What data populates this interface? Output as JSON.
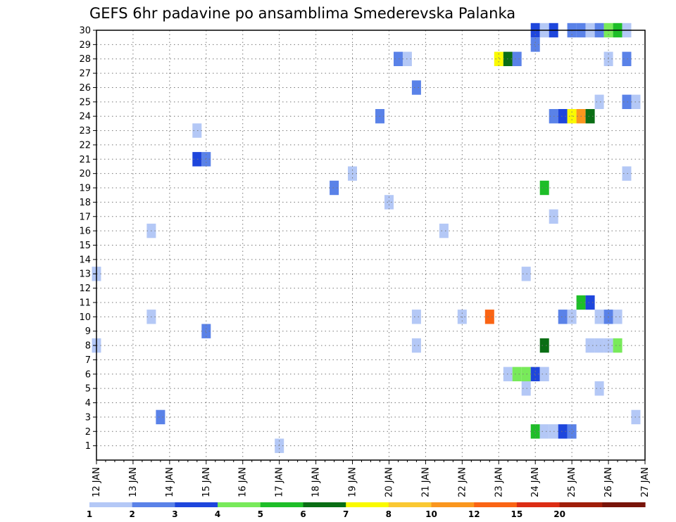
{
  "chart_data": {
    "type": "heatmap",
    "title": "GEFS 6hr padavine po ansamblima Smederevska Palanka",
    "x_tick_labels": [
      "12 JAN",
      "13 JAN",
      "14 JAN",
      "15 JAN",
      "16 JAN",
      "17 JAN",
      "18 JAN",
      "19 JAN",
      "20 JAN",
      "21 JAN",
      "22 JAN",
      "23 JAN",
      "24 JAN",
      "25 JAN",
      "26 JAN",
      "27 JAN"
    ],
    "x_range_days": [
      12,
      27
    ],
    "y_tick_labels": [
      "1",
      "2",
      "3",
      "4",
      "5",
      "6",
      "7",
      "8",
      "9",
      "10",
      "11",
      "12",
      "13",
      "14",
      "15",
      "16",
      "17",
      "18",
      "19",
      "20",
      "21",
      "22",
      "23",
      "24",
      "25",
      "26",
      "27",
      "28",
      "29",
      "30"
    ],
    "y_range": [
      0,
      30
    ],
    "grid": true,
    "colorbar": {
      "placement": "bottom",
      "tick_labels": [
        "1",
        "2",
        "3",
        "4",
        "5",
        "6",
        "7",
        "8",
        "10",
        "12",
        "15",
        "20"
      ],
      "colors": [
        "#b4c8f6",
        "#5a82e8",
        "#1e46dc",
        "#78ea5a",
        "#1ebe28",
        "#0a6e14",
        "#fafa00",
        "#fac832",
        "#fa961e",
        "#fa6414",
        "#dc2d14",
        "#a01e0a",
        "#78140a"
      ]
    },
    "cells": [
      {
        "day": 12.0,
        "member": 13,
        "color": "#b4c8f6"
      },
      {
        "day": 12.0,
        "member": 8,
        "color": "#b4c8f6"
      },
      {
        "day": 13.5,
        "member": 16,
        "color": "#b4c8f6"
      },
      {
        "day": 13.5,
        "member": 10,
        "color": "#b4c8f6"
      },
      {
        "day": 13.75,
        "member": 3,
        "color": "#5a82e8"
      },
      {
        "day": 14.75,
        "member": 23,
        "color": "#b4c8f6"
      },
      {
        "day": 14.75,
        "member": 21,
        "color": "#1e46dc"
      },
      {
        "day": 15.0,
        "member": 21,
        "color": "#5a82e8"
      },
      {
        "day": 15.0,
        "member": 9,
        "color": "#5a82e8"
      },
      {
        "day": 17.0,
        "member": 1,
        "color": "#b4c8f6"
      },
      {
        "day": 18.5,
        "member": 19,
        "color": "#5a82e8"
      },
      {
        "day": 19.0,
        "member": 20,
        "color": "#b4c8f6"
      },
      {
        "day": 19.75,
        "member": 24,
        "color": "#5a82e8"
      },
      {
        "day": 20.0,
        "member": 18,
        "color": "#b4c8f6"
      },
      {
        "day": 20.25,
        "member": 28,
        "color": "#5a82e8"
      },
      {
        "day": 20.5,
        "member": 28,
        "color": "#b4c8f6"
      },
      {
        "day": 20.75,
        "member": 26,
        "color": "#5a82e8"
      },
      {
        "day": 20.75,
        "member": 10,
        "color": "#b4c8f6"
      },
      {
        "day": 20.75,
        "member": 8,
        "color": "#b4c8f6"
      },
      {
        "day": 21.5,
        "member": 16,
        "color": "#b4c8f6"
      },
      {
        "day": 22.0,
        "member": 10,
        "color": "#b4c8f6"
      },
      {
        "day": 22.75,
        "member": 10,
        "color": "#fa6414"
      },
      {
        "day": 23.0,
        "member": 28,
        "color": "#fafa00"
      },
      {
        "day": 23.25,
        "member": 28,
        "color": "#0a6e14"
      },
      {
        "day": 23.25,
        "member": 6,
        "color": "#b4c8f6"
      },
      {
        "day": 23.5,
        "member": 28,
        "color": "#5a82e8"
      },
      {
        "day": 23.5,
        "member": 6,
        "color": "#78ea5a"
      },
      {
        "day": 23.75,
        "member": 6,
        "color": "#78ea5a"
      },
      {
        "day": 23.75,
        "member": 13,
        "color": "#b4c8f6"
      },
      {
        "day": 23.75,
        "member": 5,
        "color": "#b4c8f6"
      },
      {
        "day": 24.0,
        "member": 30,
        "color": "#1e46dc"
      },
      {
        "day": 24.0,
        "member": 29,
        "color": "#5a82e8"
      },
      {
        "day": 24.0,
        "member": 6,
        "color": "#1e46dc"
      },
      {
        "day": 24.0,
        "member": 2,
        "color": "#1ebe28"
      },
      {
        "day": 24.25,
        "member": 30,
        "color": "#b4c8f6"
      },
      {
        "day": 24.25,
        "member": 19,
        "color": "#1ebe28"
      },
      {
        "day": 24.25,
        "member": 8,
        "color": "#0a6e14"
      },
      {
        "day": 24.25,
        "member": 6,
        "color": "#b4c8f6"
      },
      {
        "day": 24.25,
        "member": 2,
        "color": "#b4c8f6"
      },
      {
        "day": 24.5,
        "member": 30,
        "color": "#1e46dc"
      },
      {
        "day": 24.5,
        "member": 24,
        "color": "#5a82e8"
      },
      {
        "day": 24.5,
        "member": 17,
        "color": "#b4c8f6"
      },
      {
        "day": 24.5,
        "member": 2,
        "color": "#b4c8f6"
      },
      {
        "day": 24.75,
        "member": 24,
        "color": "#1e46dc"
      },
      {
        "day": 24.75,
        "member": 10,
        "color": "#5a82e8"
      },
      {
        "day": 24.75,
        "member": 2,
        "color": "#1e46dc"
      },
      {
        "day": 25.0,
        "member": 30,
        "color": "#5a82e8"
      },
      {
        "day": 25.0,
        "member": 24,
        "color": "#fafa00"
      },
      {
        "day": 25.0,
        "member": 10,
        "color": "#b4c8f6"
      },
      {
        "day": 25.0,
        "member": 2,
        "color": "#5a82e8"
      },
      {
        "day": 25.25,
        "member": 30,
        "color": "#5a82e8"
      },
      {
        "day": 25.25,
        "member": 24,
        "color": "#fa961e"
      },
      {
        "day": 25.25,
        "member": 11,
        "color": "#1ebe28"
      },
      {
        "day": 25.5,
        "member": 30,
        "color": "#b4c8f6"
      },
      {
        "day": 25.5,
        "member": 24,
        "color": "#0a6e14"
      },
      {
        "day": 25.5,
        "member": 11,
        "color": "#1e46dc"
      },
      {
        "day": 25.5,
        "member": 8,
        "color": "#b4c8f6"
      },
      {
        "day": 25.75,
        "member": 30,
        "color": "#5a82e8"
      },
      {
        "day": 25.75,
        "member": 25,
        "color": "#b4c8f6"
      },
      {
        "day": 25.75,
        "member": 10,
        "color": "#b4c8f6"
      },
      {
        "day": 25.75,
        "member": 8,
        "color": "#b4c8f6"
      },
      {
        "day": 25.75,
        "member": 5,
        "color": "#b4c8f6"
      },
      {
        "day": 26.0,
        "member": 30,
        "color": "#78ea5a"
      },
      {
        "day": 26.0,
        "member": 28,
        "color": "#b4c8f6"
      },
      {
        "day": 26.0,
        "member": 10,
        "color": "#5a82e8"
      },
      {
        "day": 26.0,
        "member": 8,
        "color": "#b4c8f6"
      },
      {
        "day": 26.25,
        "member": 30,
        "color": "#1ebe28"
      },
      {
        "day": 26.25,
        "member": 10,
        "color": "#b4c8f6"
      },
      {
        "day": 26.25,
        "member": 8,
        "color": "#78ea5a"
      },
      {
        "day": 26.5,
        "member": 30,
        "color": "#b4c8f6"
      },
      {
        "day": 26.5,
        "member": 28,
        "color": "#5a82e8"
      },
      {
        "day": 26.5,
        "member": 25,
        "color": "#5a82e8"
      },
      {
        "day": 26.5,
        "member": 20,
        "color": "#b4c8f6"
      },
      {
        "day": 26.75,
        "member": 25,
        "color": "#b4c8f6"
      },
      {
        "day": 26.75,
        "member": 3,
        "color": "#b4c8f6"
      }
    ]
  }
}
